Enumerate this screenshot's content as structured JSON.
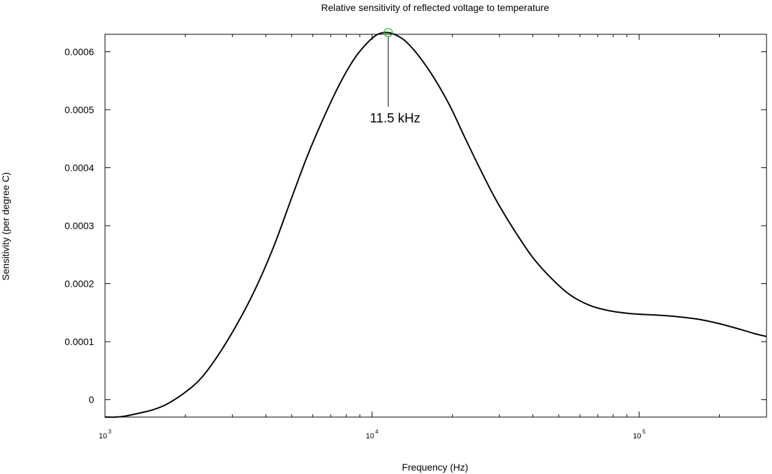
{
  "chart_data": {
    "type": "line",
    "title": "Relative sensitivity of reflected voltage to temperature",
    "xlabel": "Frequency (Hz)",
    "ylabel": "Sensitivity (per degree C)",
    "xscale": "log",
    "xlim": [
      1000,
      300000
    ],
    "ylim": [
      -3e-05,
      0.00063
    ],
    "grid": false,
    "legend": "none",
    "x_ticks": [
      {
        "value": 1000,
        "base": "10",
        "exp": "3"
      },
      {
        "value": 10000,
        "base": "10",
        "exp": "4"
      },
      {
        "value": 100000,
        "base": "10",
        "exp": "5"
      }
    ],
    "y_ticks": [
      {
        "value": 0,
        "label": "0"
      },
      {
        "value": 0.0001,
        "label": "0.0001"
      },
      {
        "value": 0.0002,
        "label": "0.0002"
      },
      {
        "value": 0.0003,
        "label": "0.0003"
      },
      {
        "value": 0.0004,
        "label": "0.0004"
      },
      {
        "value": 0.0005,
        "label": "0.0005"
      },
      {
        "value": 0.0006,
        "label": "0.0006"
      }
    ],
    "series": [
      {
        "name": "sensitivity",
        "color": "#000000",
        "x": [
          1000,
          1100,
          1200,
          1350,
          1500,
          1700,
          2000,
          2300,
          2700,
          3200,
          3700,
          4300,
          5000,
          5700,
          6500,
          7500,
          8500,
          9500,
          10500,
          11500,
          12500,
          13500,
          15000,
          17000,
          19500,
          22000,
          25000,
          29000,
          34000,
          40000,
          47000,
          55000,
          65000,
          78000,
          95000,
          115000,
          140000,
          170000,
          200000,
          240000,
          270000,
          300000
        ],
        "y": [
          -3e-05,
          -3e-05,
          -2.8e-05,
          -2.3e-05,
          -1.8e-05,
          -8e-06,
          1.3e-05,
          3.8e-05,
          8.2e-05,
          0.000139,
          0.000196,
          0.000266,
          0.000348,
          0.000418,
          0.00048,
          0.000541,
          0.000585,
          0.000613,
          0.00063,
          0.000633,
          0.000627,
          0.000616,
          0.000592,
          0.000556,
          0.000508,
          0.000457,
          0.000404,
          0.000346,
          0.000293,
          0.000245,
          0.000209,
          0.000181,
          0.000163,
          0.000153,
          0.000148,
          0.000146,
          0.000143,
          0.000138,
          0.000131,
          0.000121,
          0.000114,
          0.000109
        ]
      }
    ],
    "annotations": [
      {
        "text": "11.5 kHz",
        "x": 11500,
        "y": 0.000633,
        "marker_color": "#22bb22"
      }
    ]
  }
}
